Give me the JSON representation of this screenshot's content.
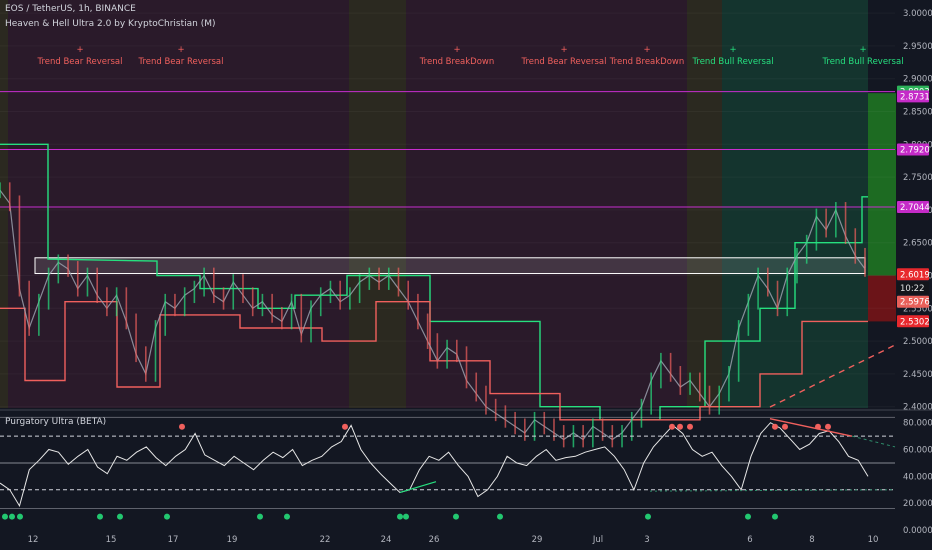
{
  "header": {
    "symbol_line": "EOS / TetherUS, 1h, BINANCE",
    "indicator_line": "Heaven & Hell Ultra 2.0 by KryptoChristian (M)",
    "sub_indicator": "Purgatory Ultra (BETA)"
  },
  "colors": {
    "background": "#131722",
    "bull": "#26e07f",
    "bear": "#f0605d",
    "magenta": "#c72ecf",
    "zone_dark": "#2a1a2a",
    "zone_olive": "#2b2b1f",
    "zone_green": "#12372f"
  },
  "chart_data": [
    {
      "type": "line",
      "title": "EOS / TetherUS, 1h, BINANCE",
      "y_ticks": [
        "3.0000",
        "2.9500",
        "2.9000",
        "2.8500",
        "2.8000",
        "2.7500",
        "2.7000",
        "2.6500",
        "2.6000",
        "2.5500",
        "2.5000",
        "2.4500",
        "2.4000"
      ],
      "y_range": [
        2.398,
        3.02
      ],
      "x_ticks": [
        "12",
        "15",
        "17",
        "19",
        "22",
        "24",
        "26",
        "29",
        "Jul",
        "3",
        "6",
        "8",
        "10"
      ],
      "horizontal_levels": [
        2.8803,
        2.792,
        2.7044
      ],
      "price_labels": [
        {
          "text": "2.8803",
          "kind": "green"
        },
        {
          "text": "2.8731",
          "kind": "magenta"
        },
        {
          "text": "2.7920",
          "kind": "magenta"
        },
        {
          "text": "2.7044",
          "kind": "magenta"
        },
        {
          "text": "2.6019",
          "kind": "red"
        },
        {
          "text": "10:22",
          "kind": "dark"
        },
        {
          "text": "2.5976",
          "kind": "salmon"
        },
        {
          "text": "2.5302",
          "kind": "red"
        }
      ],
      "signals": [
        {
          "label": "Trend Bear Reversal",
          "kind": "bear"
        },
        {
          "label": "Trend Bear Reversal",
          "kind": "bear"
        },
        {
          "label": "Trend BreakDown",
          "kind": "bear"
        },
        {
          "label": "Trend Bear Reversal",
          "kind": "bear"
        },
        {
          "label": "Trend BreakDown",
          "kind": "bear"
        },
        {
          "label": "Trend Bull Reversal",
          "kind": "bull"
        },
        {
          "label": "Trend Bull Reversal",
          "kind": "bull"
        }
      ],
      "price_path": [
        2.73,
        2.71,
        2.58,
        2.52,
        2.56,
        2.6,
        2.62,
        2.61,
        2.58,
        2.6,
        2.57,
        2.55,
        2.57,
        2.53,
        2.48,
        2.45,
        2.52,
        2.56,
        2.55,
        2.57,
        2.58,
        2.6,
        2.57,
        2.56,
        2.59,
        2.57,
        2.55,
        2.56,
        2.54,
        2.53,
        2.56,
        2.51,
        2.55,
        2.57,
        2.58,
        2.56,
        2.57,
        2.59,
        2.6,
        2.59,
        2.6,
        2.58,
        2.56,
        2.53,
        2.5,
        2.47,
        2.49,
        2.48,
        2.44,
        2.42,
        2.4,
        2.39,
        2.38,
        2.37,
        2.36,
        2.38,
        2.37,
        2.36,
        2.35,
        2.36,
        2.35,
        2.37,
        2.36,
        2.35,
        2.36,
        2.38,
        2.4,
        2.44,
        2.47,
        2.45,
        2.43,
        2.44,
        2.42,
        2.4,
        2.42,
        2.45,
        2.52,
        2.56,
        2.6,
        2.58,
        2.55,
        2.6,
        2.63,
        2.65,
        2.69,
        2.67,
        2.7,
        2.66,
        2.63,
        2.61
      ]
    },
    {
      "type": "line",
      "title": "Purgatory Ultra (BETA)",
      "y_ticks": [
        "80.0000",
        "60.0000",
        "40.0000",
        "20.0000",
        "0.0000"
      ],
      "y_range": [
        0,
        88
      ],
      "dashed_levels": [
        70,
        30
      ],
      "solid_level": 50,
      "osc_path": [
        35,
        30,
        18,
        45,
        52,
        60,
        58,
        49,
        55,
        60,
        47,
        42,
        55,
        52,
        58,
        62,
        54,
        48,
        55,
        60,
        72,
        56,
        52,
        48,
        55,
        50,
        45,
        52,
        58,
        54,
        60,
        48,
        52,
        55,
        62,
        66,
        78,
        60,
        50,
        42,
        35,
        28,
        30,
        45,
        55,
        52,
        58,
        48,
        40,
        25,
        30,
        40,
        55,
        50,
        48,
        55,
        60,
        52,
        54,
        55,
        58,
        60,
        62,
        55,
        45,
        30,
        50,
        62,
        70,
        78,
        72,
        60,
        55,
        58,
        48,
        40,
        30,
        55,
        72,
        80,
        76,
        68,
        60,
        64,
        72,
        74,
        66,
        55,
        52,
        40
      ]
    }
  ]
}
